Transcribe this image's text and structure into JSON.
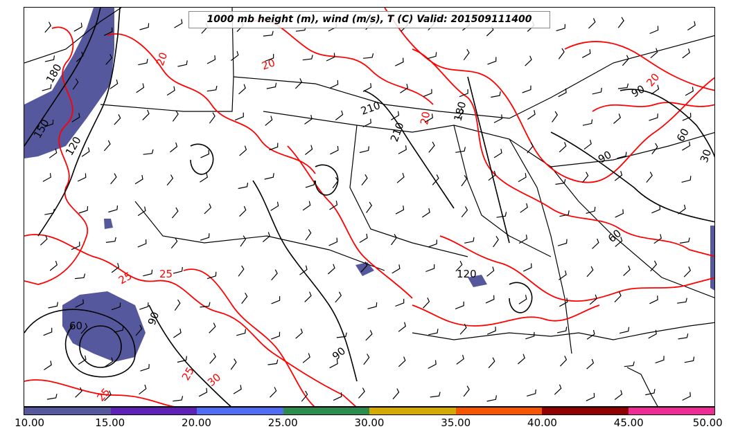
{
  "title": "1000 mb height (m), wind (m/s), T (C) Valid: 201509111400",
  "colorbar": {
    "colors": [
      "#55589c",
      "#5d22b5",
      "#4f6cf3",
      "#2b8c4e",
      "#d4aa00",
      "#f65500",
      "#8e0000",
      "#ef2c96"
    ],
    "labels": [
      "10.00",
      "15.00",
      "20.00",
      "25.00",
      "30.00",
      "35.00",
      "40.00",
      "45.00",
      "50.00"
    ]
  },
  "contour_labels": [
    {
      "text": "180",
      "color": "black"
    },
    {
      "text": "150",
      "color": "black"
    },
    {
      "text": "120",
      "color": "black"
    },
    {
      "text": "210",
      "color": "black"
    },
    {
      "text": "210",
      "color": "black"
    },
    {
      "text": "180",
      "color": "black"
    },
    {
      "text": "120",
      "color": "black"
    },
    {
      "text": "90",
      "color": "black"
    },
    {
      "text": "90",
      "color": "black"
    },
    {
      "text": "60",
      "color": "black"
    },
    {
      "text": "90",
      "color": "black"
    },
    {
      "text": "60",
      "color": "black"
    },
    {
      "text": "30",
      "color": "black"
    },
    {
      "text": "90",
      "color": "black"
    },
    {
      "text": "60",
      "color": "black"
    },
    {
      "text": "20",
      "color": "red"
    },
    {
      "text": "20",
      "color": "red"
    },
    {
      "text": "25",
      "color": "red"
    },
    {
      "text": "25",
      "color": "red"
    },
    {
      "text": "30",
      "color": "red"
    },
    {
      "text": "25",
      "color": "red"
    },
    {
      "text": "25",
      "color": "red"
    },
    {
      "text": "20",
      "color": "red"
    },
    {
      "text": "20",
      "color": "red"
    }
  ]
}
